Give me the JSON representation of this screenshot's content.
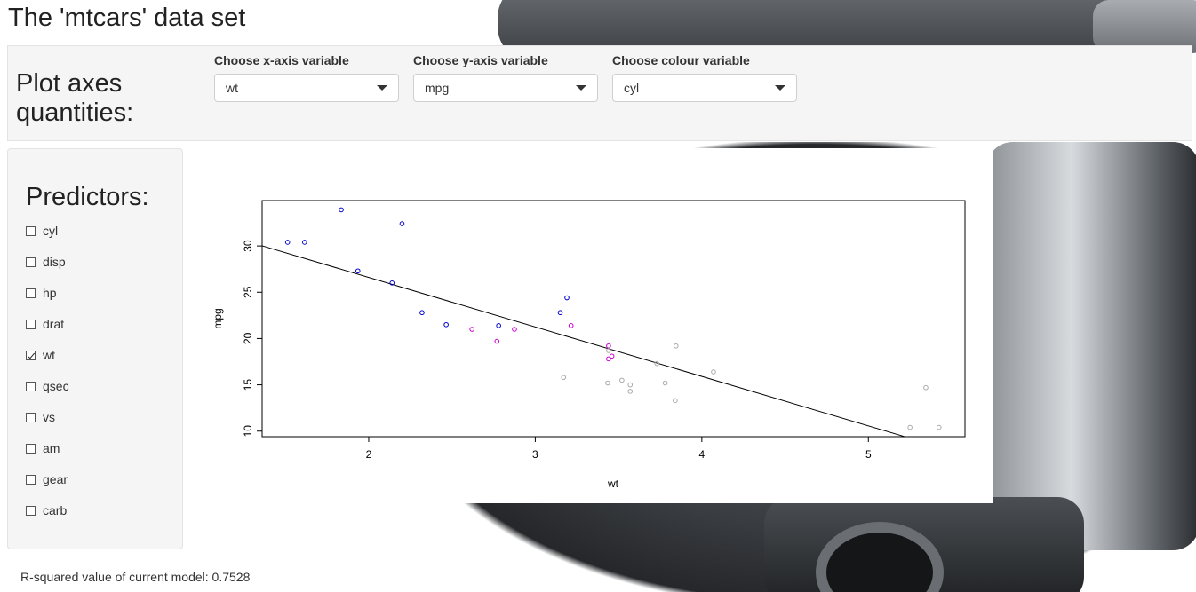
{
  "page": {
    "title": "The 'mtcars' data set"
  },
  "axes_panel": {
    "heading": "Plot axes quantities:",
    "x_select": {
      "label": "Choose x-axis variable",
      "value": "wt"
    },
    "y_select": {
      "label": "Choose y-axis variable",
      "value": "mpg"
    },
    "colour_select": {
      "label": "Choose colour variable",
      "value": "cyl"
    }
  },
  "predictors": {
    "heading": "Predictors:",
    "items": [
      {
        "label": "cyl",
        "checked": false
      },
      {
        "label": "disp",
        "checked": false
      },
      {
        "label": "hp",
        "checked": false
      },
      {
        "label": "drat",
        "checked": false
      },
      {
        "label": "wt",
        "checked": true
      },
      {
        "label": "qsec",
        "checked": false
      },
      {
        "label": "vs",
        "checked": false
      },
      {
        "label": "am",
        "checked": false
      },
      {
        "label": "gear",
        "checked": false
      },
      {
        "label": "carb",
        "checked": false
      }
    ]
  },
  "status": {
    "rsquared_text": "R-squared value of current model: 0.7528"
  },
  "colors": {
    "cyl4": "#0000cc",
    "cyl6": "#cc00cc",
    "cyl8": "#aaaaaa",
    "fit": "#000000"
  },
  "chart_data": {
    "type": "scatter",
    "xlabel": "wt",
    "ylabel": "mpg",
    "xlim": [
      1.36,
      5.58
    ],
    "ylim": [
      9.4,
      34.9
    ],
    "xticks": [
      2,
      3,
      4,
      5
    ],
    "yticks": [
      10,
      15,
      20,
      25,
      30
    ],
    "grid": false,
    "fit_line": {
      "intercept": 37.285,
      "slope": -5.344
    },
    "series": [
      {
        "color": "#0000cc",
        "points": [
          [
            2.32,
            22.8
          ],
          [
            3.19,
            24.4
          ],
          [
            3.15,
            22.8
          ],
          [
            2.2,
            32.4
          ],
          [
            1.615,
            30.4
          ],
          [
            1.835,
            33.9
          ],
          [
            2.465,
            21.5
          ],
          [
            1.935,
            27.3
          ],
          [
            2.14,
            26.0
          ],
          [
            1.513,
            30.4
          ],
          [
            2.78,
            21.4
          ]
        ]
      },
      {
        "color": "#cc00cc",
        "points": [
          [
            2.62,
            21.0
          ],
          [
            2.875,
            21.0
          ],
          [
            3.215,
            21.4
          ],
          [
            3.46,
            18.1
          ],
          [
            3.44,
            19.2
          ],
          [
            3.44,
            17.8
          ],
          [
            2.77,
            19.7
          ]
        ]
      },
      {
        "color": "#aaaaaa",
        "points": [
          [
            3.44,
            18.7
          ],
          [
            3.57,
            14.3
          ],
          [
            4.07,
            16.4
          ],
          [
            3.73,
            17.3
          ],
          [
            3.78,
            15.2
          ],
          [
            5.25,
            10.4
          ],
          [
            5.424,
            10.4
          ],
          [
            5.345,
            14.7
          ],
          [
            3.52,
            15.5
          ],
          [
            3.435,
            15.2
          ],
          [
            3.84,
            13.3
          ],
          [
            3.845,
            19.2
          ],
          [
            3.17,
            15.8
          ],
          [
            3.57,
            15.0
          ]
        ]
      }
    ]
  }
}
